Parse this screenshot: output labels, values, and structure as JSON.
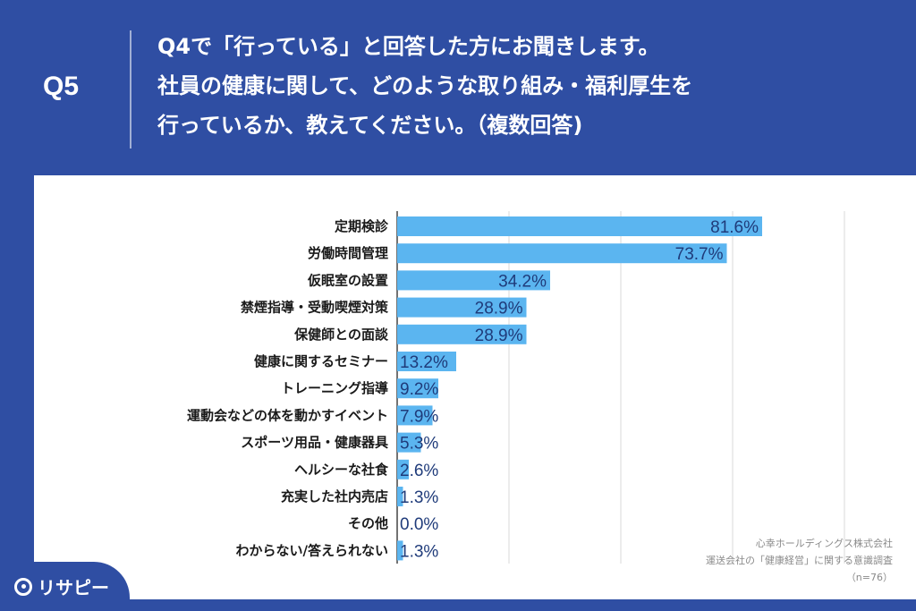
{
  "header": {
    "question_number": "Q5",
    "question_lines": [
      "Q4で「行っている」と回答した方にお聞きします。",
      "社員の健康に関して、どのような取り組み・福利厚生を",
      "行っているか、教えてください。（複数回答)"
    ]
  },
  "chart_data": {
    "type": "bar",
    "orientation": "horizontal",
    "categories": [
      "定期検診",
      "労働時間管理",
      "仮眠室の設置",
      "禁煙指導・受動喫煙対策",
      "保健師との面談",
      "健康に関するセミナー",
      "トレーニング指導",
      "運動会などの体を動かすイベント",
      "スポーツ用品・健康器具",
      "ヘルシーな社食",
      "充実した社内売店",
      "その他",
      "わからない/答えられない"
    ],
    "values": [
      81.6,
      73.7,
      34.2,
      28.9,
      28.9,
      13.2,
      9.2,
      7.9,
      5.3,
      2.6,
      1.3,
      0.0,
      1.3
    ],
    "value_labels": [
      "81.6%",
      "73.7%",
      "34.2%",
      "28.9%",
      "28.9%",
      "13.2%",
      "9.2%",
      "7.9%",
      "5.3%",
      "2.6%",
      "1.3%",
      "0.0%",
      "1.3%"
    ],
    "xlim": [
      0,
      100
    ],
    "grid": true,
    "bar_color": "#5bb5f0"
  },
  "source": {
    "line1": "心幸ホールディングス株式会社",
    "line2": "運送会社の「健康経営」に関する意識調査",
    "line3": "（n=76）"
  },
  "brand": {
    "name": "リサピー",
    "icon": "risapy-logo-icon"
  }
}
